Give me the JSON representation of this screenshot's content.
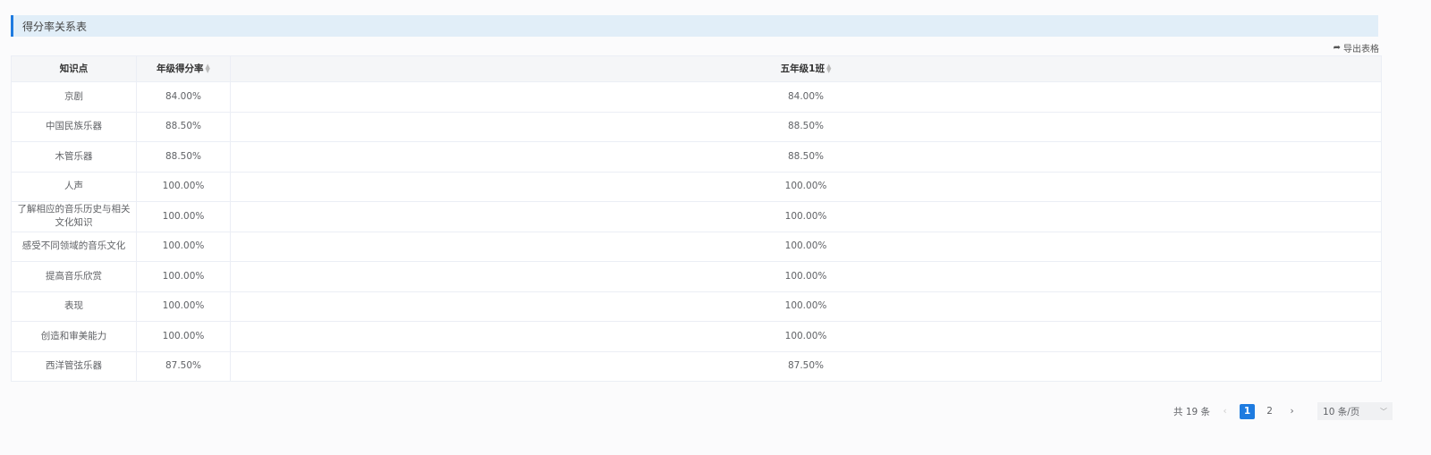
{
  "title": "得分率关系表",
  "export_label": "导出表格",
  "table": {
    "headers": [
      "知识点",
      "年级得分率",
      "五年级1班"
    ],
    "rows": [
      [
        "京剧",
        "84.00%",
        "84.00%"
      ],
      [
        "中国民族乐器",
        "88.50%",
        "88.50%"
      ],
      [
        "木管乐器",
        "88.50%",
        "88.50%"
      ],
      [
        "人声",
        "100.00%",
        "100.00%"
      ],
      [
        "了解相应的音乐历史与相关文化知识",
        "100.00%",
        "100.00%"
      ],
      [
        "感受不同领域的音乐文化",
        "100.00%",
        "100.00%"
      ],
      [
        "提高音乐欣赏",
        "100.00%",
        "100.00%"
      ],
      [
        "表现",
        "100.00%",
        "100.00%"
      ],
      [
        "创造和审美能力",
        "100.00%",
        "100.00%"
      ],
      [
        "西洋管弦乐器",
        "87.50%",
        "87.50%"
      ]
    ]
  },
  "pagination": {
    "total": "共 19 条",
    "prev": "‹",
    "pages": [
      "1",
      "2"
    ],
    "next": "›",
    "page_size": "10 条/页"
  }
}
